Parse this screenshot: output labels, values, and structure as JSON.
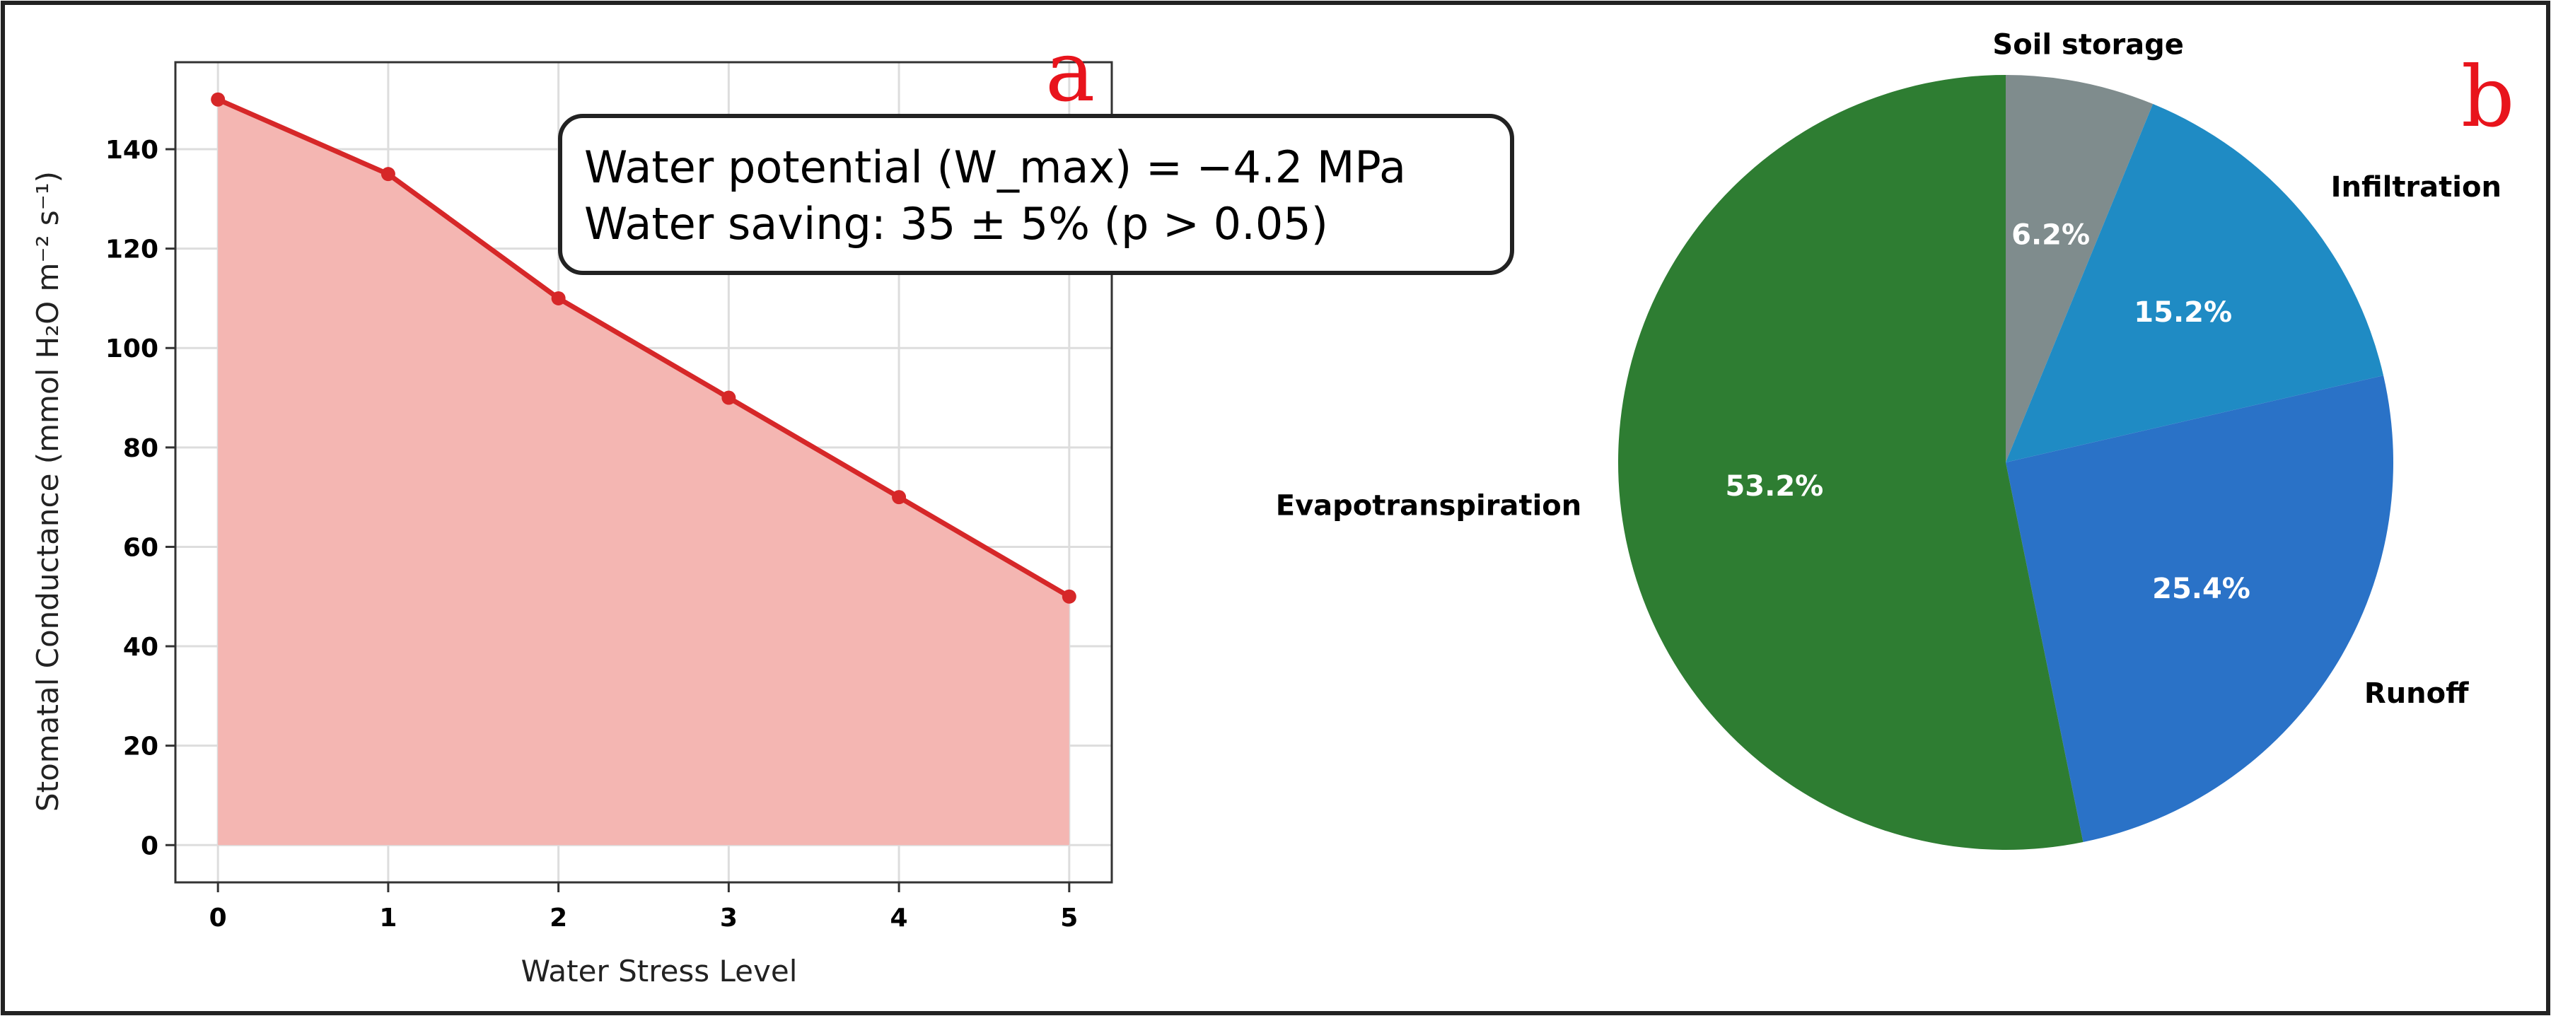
{
  "chart_data": [
    {
      "type": "area",
      "panel": "a",
      "x": [
        0,
        1,
        2,
        3,
        4,
        5
      ],
      "y": [
        150,
        135,
        110,
        90,
        70,
        50
      ],
      "xlabel": "Water Stress Level",
      "ylabel": "Stomatal Conductance (mmol H₂O m⁻² s⁻¹)",
      "xlim": [
        -0.25,
        5.25
      ],
      "ylim": [
        -7.5,
        157.5
      ],
      "xticks": [
        "0",
        "1",
        "2",
        "3",
        "4",
        "5"
      ],
      "yticks": [
        "0",
        "20",
        "40",
        "60",
        "80",
        "100",
        "120",
        "140"
      ],
      "grid": true,
      "line_color": "#d62728",
      "fill_color": "#f4b6b2",
      "annotation": [
        "Water potential (W_max) = −4.2 MPa",
        "Water saving: 35 ± 5% (p > 0.05)"
      ]
    },
    {
      "type": "pie",
      "panel": "b",
      "slices": [
        {
          "label": "Soil storage",
          "value": 6.2,
          "pct_label": "6.2%",
          "color": "#7f8c8d"
        },
        {
          "label": "Infiltration",
          "value": 15.2,
          "pct_label": "15.2%",
          "color": "#1f8bc4"
        },
        {
          "label": "Runoff",
          "value": 25.4,
          "pct_label": "25.4%",
          "color": "#2a72c7"
        },
        {
          "label": "Evapotranspiration",
          "value": 53.2,
          "pct_label": "53.2%",
          "color": "#2e7d32"
        }
      ],
      "start_angle_deg": 90,
      "direction": "clockwise"
    }
  ]
}
